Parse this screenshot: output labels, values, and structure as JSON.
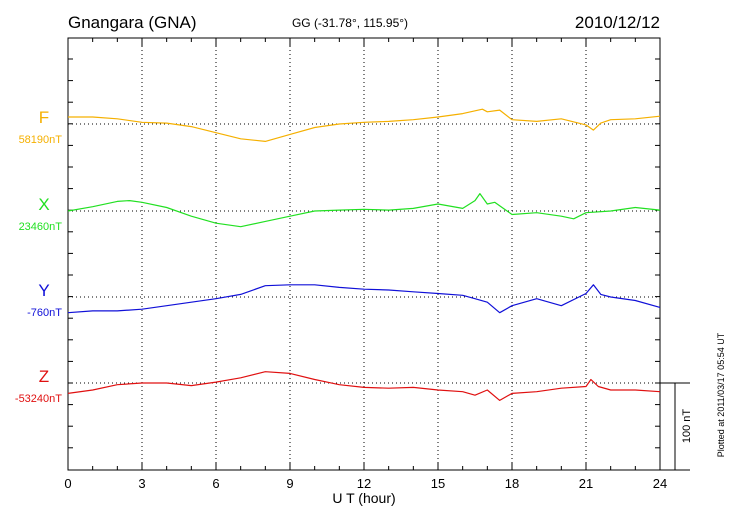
{
  "header": {
    "station": "Gnangara (GNA)",
    "coords": "GG (-31.78°, 115.95°)",
    "date": "2010/12/12"
  },
  "side_note": "Plotted at 2011/03/17 05:54 UT",
  "scale_label": "100 nT",
  "chart_data": {
    "type": "line",
    "xlabel": "U T (hour)",
    "xlim": [
      0,
      24
    ],
    "xticks": [
      "0",
      "3",
      "6",
      "9",
      "12",
      "15",
      "18",
      "21",
      "24"
    ],
    "grid": true,
    "y_unit_scale_nT_per_grid": 100,
    "series": [
      {
        "name": "F",
        "baseline": "58190nT",
        "color": "#f5b000",
        "x": [
          0,
          1,
          2,
          3,
          4,
          5,
          6,
          7,
          8,
          9,
          10,
          11,
          12,
          13,
          14,
          15,
          16,
          16.8,
          17,
          17.5,
          18,
          19,
          20,
          21,
          21.3,
          21.6,
          22,
          23,
          24
        ],
        "y": [
          8,
          8,
          6,
          2,
          1,
          -3,
          -10,
          -17,
          -20,
          -12,
          -4,
          0,
          2,
          3,
          5,
          8,
          12,
          17,
          14,
          16,
          5,
          3,
          6,
          -1,
          -7,
          1,
          5,
          6,
          9
        ]
      },
      {
        "name": "X",
        "baseline": "23460nT",
        "color": "#22e022",
        "x": [
          0,
          1,
          2,
          2.5,
          3,
          4,
          5,
          6,
          7,
          8,
          9,
          10,
          11,
          12,
          13,
          14,
          15,
          16,
          16.5,
          16.7,
          17,
          17.3,
          18,
          19,
          20,
          20.5,
          21,
          22,
          23,
          24
        ],
        "y": [
          0,
          5,
          11,
          12,
          10,
          4,
          -6,
          -14,
          -18,
          -12,
          -6,
          0,
          1,
          2,
          1,
          3,
          8,
          3,
          12,
          20,
          8,
          10,
          -4,
          -2,
          -6,
          -9,
          -2,
          0,
          4,
          1
        ]
      },
      {
        "name": "Y",
        "baseline": "-760nT",
        "color": "#1010d8",
        "x": [
          0,
          1,
          2,
          3,
          4,
          5,
          6,
          7,
          8,
          9,
          10,
          11,
          12,
          13,
          14,
          15,
          16,
          16.5,
          17,
          17.5,
          18,
          19,
          20,
          21,
          21.3,
          21.6,
          22,
          23,
          24
        ],
        "y": [
          -18,
          -16,
          -16,
          -14,
          -10,
          -6,
          -2,
          3,
          13,
          14,
          14,
          11,
          9,
          8,
          6,
          4,
          2,
          -2,
          -6,
          -18,
          -10,
          -2,
          -10,
          4,
          14,
          3,
          0,
          -4,
          -12
        ]
      },
      {
        "name": "Z",
        "baseline": "-53240nT",
        "color": "#e01010",
        "x": [
          0,
          1,
          2,
          3,
          4,
          5,
          6,
          7,
          8,
          9,
          10,
          11,
          12,
          13,
          14,
          15,
          16,
          16.5,
          17,
          17.5,
          18,
          19,
          20,
          21,
          21.2,
          21.5,
          22,
          23,
          24
        ],
        "y": [
          -12,
          -8,
          -2,
          0,
          0,
          -3,
          1,
          6,
          13,
          11,
          4,
          -2,
          -5,
          -6,
          -5,
          -8,
          -10,
          -14,
          -8,
          -20,
          -12,
          -10,
          -6,
          -4,
          4,
          -4,
          -8,
          -8,
          -10
        ]
      }
    ]
  }
}
